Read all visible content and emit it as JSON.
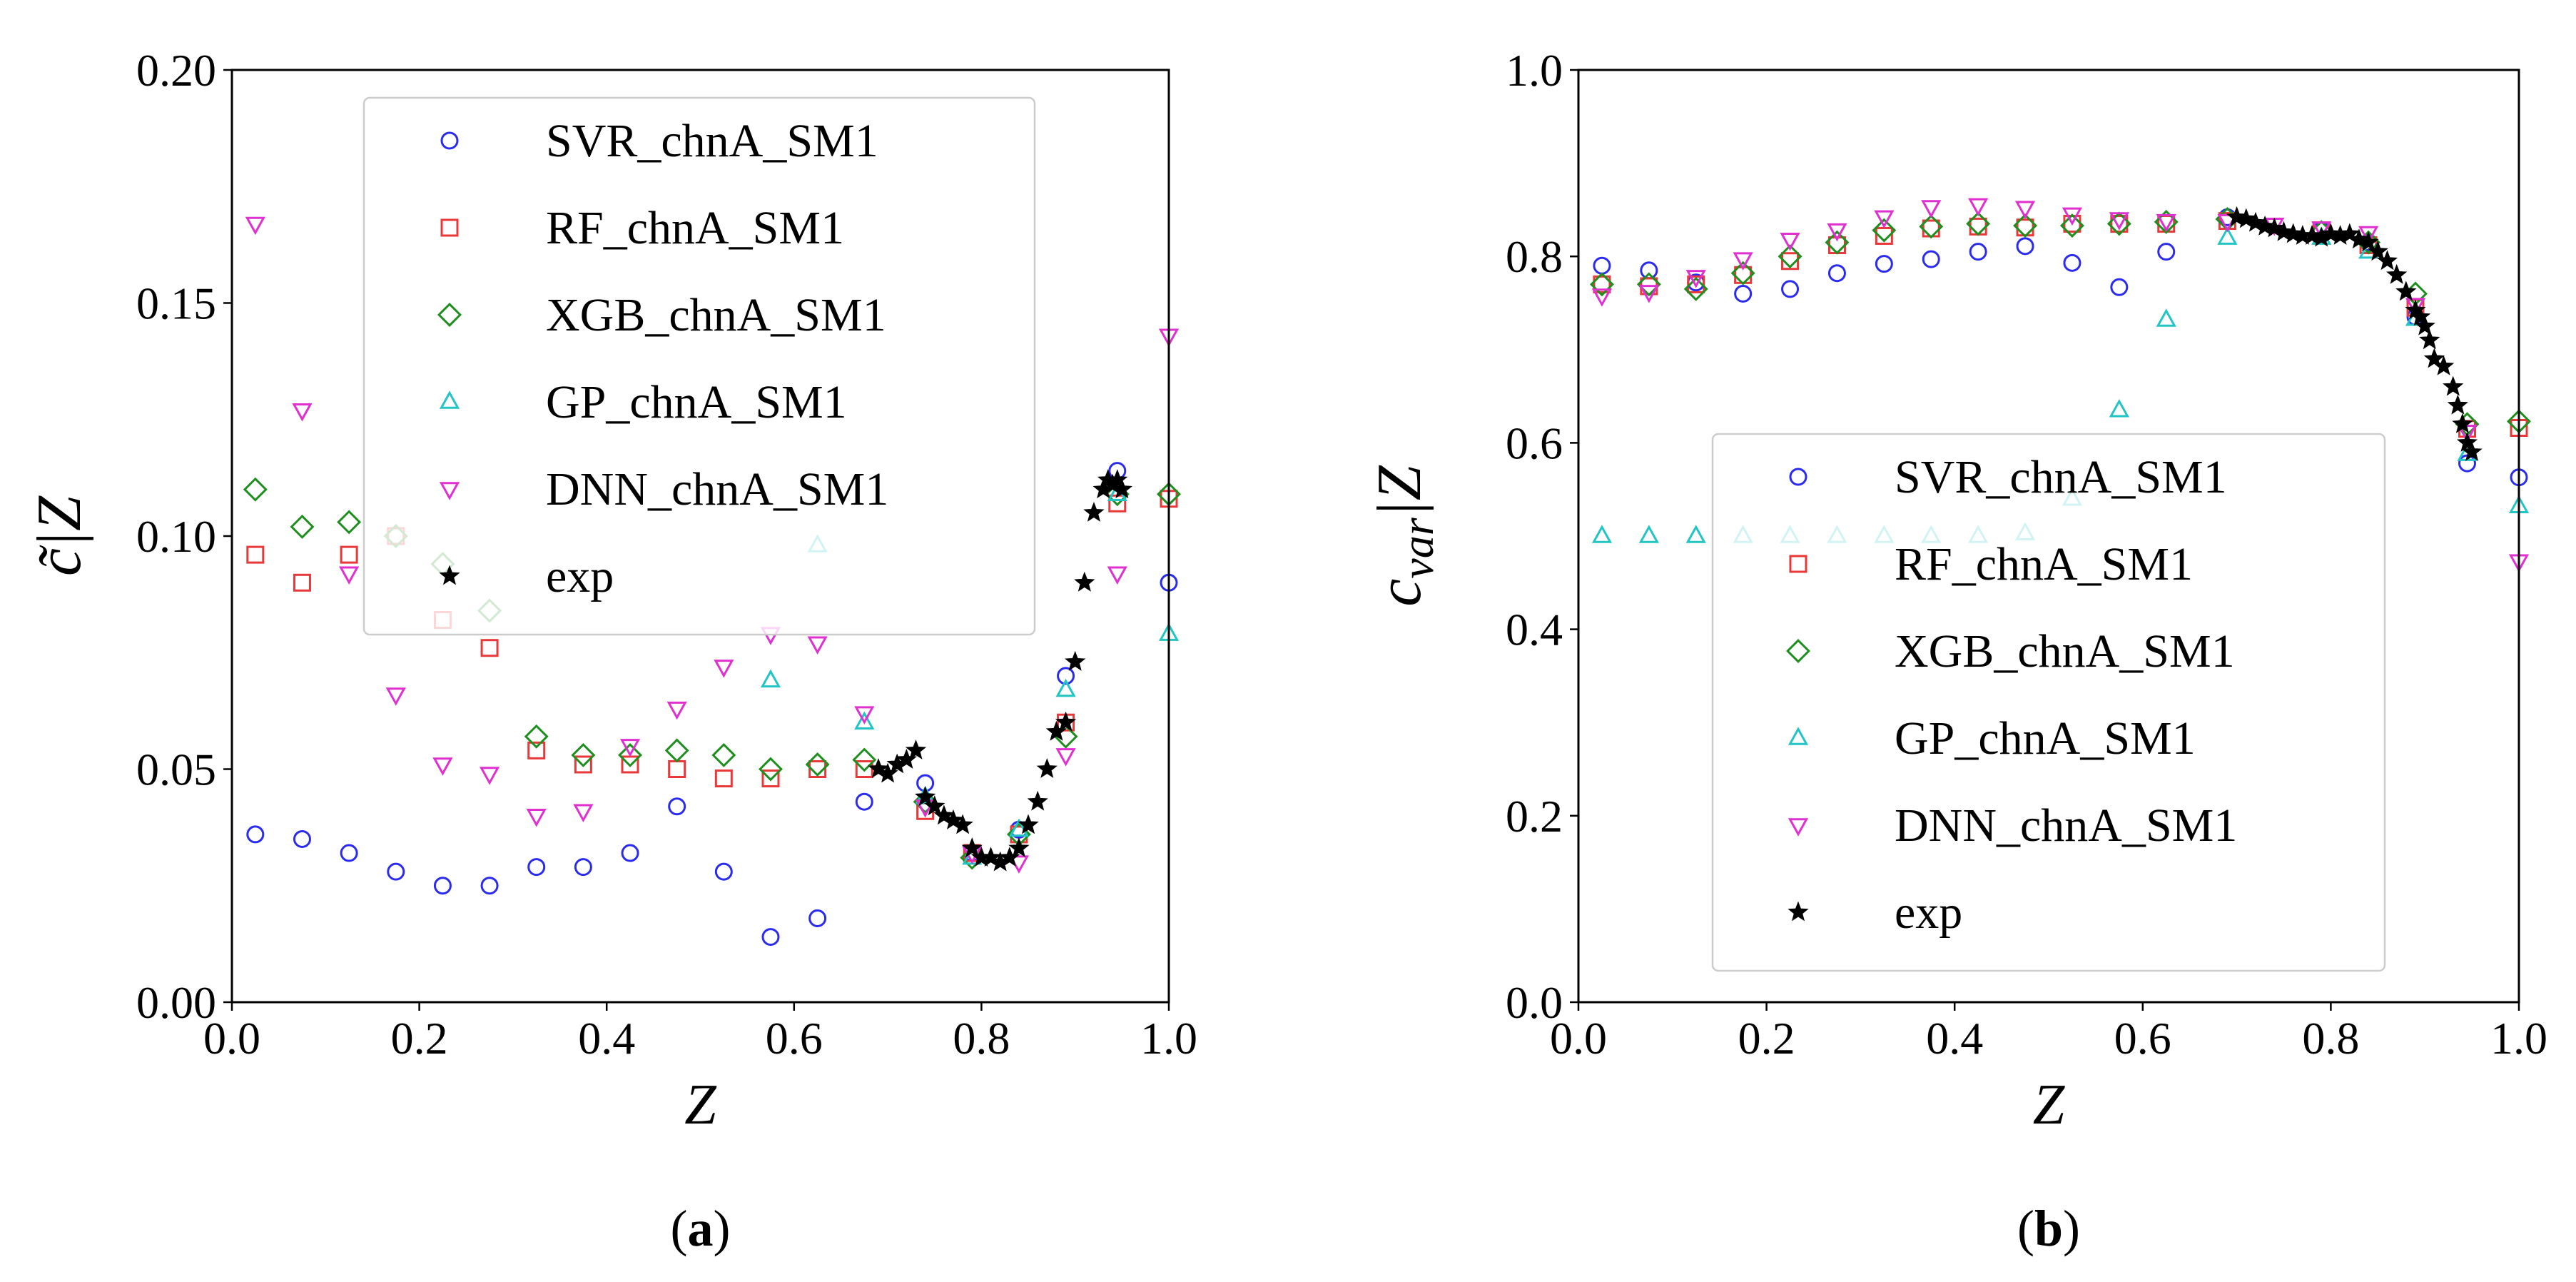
{
  "chart_data": [
    {
      "type": "scatter",
      "panel_label": "(a)",
      "xlabel": "Z",
      "ylabel": "c̃|Z",
      "xlim": [
        0.0,
        1.0
      ],
      "ylim": [
        0.0,
        0.2
      ],
      "xticks": [
        "0.0",
        "0.2",
        "0.4",
        "0.6",
        "0.8",
        "1.0"
      ],
      "yticks": [
        "0.00",
        "0.05",
        "0.10",
        "0.15",
        "0.20"
      ],
      "legend_position": "upper-center",
      "series": [
        {
          "name": "SVR_chnA_SM1",
          "marker": "circle",
          "color": "#2b2bf0",
          "x": [
            0.025,
            0.075,
            0.125,
            0.175,
            0.225,
            0.275,
            0.325,
            0.375,
            0.425,
            0.475,
            0.525,
            0.575,
            0.625,
            0.675,
            0.74,
            0.79,
            0.84,
            0.89,
            0.945,
            1.0
          ],
          "y": [
            0.036,
            0.035,
            0.032,
            0.028,
            0.025,
            0.025,
            0.029,
            0.029,
            0.032,
            0.042,
            0.028,
            0.014,
            0.018,
            0.043,
            0.047,
            0.032,
            0.037,
            0.07,
            0.114,
            0.09
          ]
        },
        {
          "name": "RF_chnA_SM1",
          "marker": "square",
          "color": "#e8383a",
          "x": [
            0.025,
            0.075,
            0.125,
            0.175,
            0.225,
            0.275,
            0.325,
            0.375,
            0.425,
            0.475,
            0.525,
            0.575,
            0.625,
            0.675,
            0.74,
            0.79,
            0.84,
            0.89,
            0.945,
            1.0
          ],
          "y": [
            0.096,
            0.09,
            0.096,
            0.1,
            0.082,
            0.076,
            0.054,
            0.051,
            0.051,
            0.05,
            0.048,
            0.048,
            0.05,
            0.05,
            0.041,
            0.032,
            0.036,
            0.06,
            0.107,
            0.108
          ]
        },
        {
          "name": "XGB_chnA_SM1",
          "marker": "diamond",
          "color": "#1e8f1e",
          "x": [
            0.025,
            0.075,
            0.125,
            0.175,
            0.225,
            0.275,
            0.325,
            0.375,
            0.425,
            0.475,
            0.525,
            0.575,
            0.625,
            0.675,
            0.74,
            0.79,
            0.84,
            0.89,
            0.945,
            1.0
          ],
          "y": [
            0.11,
            0.102,
            0.103,
            0.1,
            0.094,
            0.084,
            0.057,
            0.053,
            0.053,
            0.054,
            0.053,
            0.05,
            0.051,
            0.052,
            0.043,
            0.031,
            0.036,
            0.057,
            0.109,
            0.109
          ]
        },
        {
          "name": "GP_chnA_SM1",
          "marker": "triangle-up",
          "color": "#22c4c4",
          "x": [
            0.575,
            0.625,
            0.675,
            0.74,
            0.79,
            0.84,
            0.89,
            0.945,
            1.0
          ],
          "y": [
            0.069,
            0.098,
            0.06,
            0.044,
            0.031,
            0.037,
            0.067,
            0.109,
            0.079
          ]
        },
        {
          "name": "DNN_chnA_SM1",
          "marker": "triangle-down",
          "color": "#e030d0",
          "x": [
            0.025,
            0.075,
            0.125,
            0.175,
            0.225,
            0.275,
            0.325,
            0.375,
            0.425,
            0.475,
            0.525,
            0.575,
            0.625,
            0.675,
            0.74,
            0.79,
            0.84,
            0.89,
            0.945,
            1.0
          ],
          "y": [
            0.167,
            0.127,
            0.092,
            0.066,
            0.051,
            0.049,
            0.04,
            0.041,
            0.055,
            0.063,
            0.072,
            0.079,
            0.077,
            0.062,
            0.042,
            0.032,
            0.03,
            0.053,
            0.092,
            0.143
          ]
        },
        {
          "name": "exp",
          "marker": "star",
          "color": "#000000",
          "x": [
            0.69,
            0.7,
            0.71,
            0.72,
            0.73,
            0.74,
            0.75,
            0.76,
            0.77,
            0.78,
            0.79,
            0.8,
            0.81,
            0.82,
            0.83,
            0.84,
            0.85,
            0.86,
            0.87,
            0.88,
            0.89,
            0.9,
            0.91,
            0.92,
            0.93,
            0.935,
            0.94,
            0.945,
            0.95
          ],
          "y": [
            0.05,
            0.049,
            0.051,
            0.052,
            0.054,
            0.044,
            0.042,
            0.04,
            0.039,
            0.038,
            0.033,
            0.031,
            0.031,
            0.03,
            0.031,
            0.033,
            0.038,
            0.043,
            0.05,
            0.058,
            0.06,
            0.073,
            0.09,
            0.105,
            0.11,
            0.112,
            0.111,
            0.112,
            0.11
          ]
        }
      ]
    },
    {
      "type": "scatter",
      "panel_label": "(b)",
      "xlabel": "Z",
      "ylabel": "c_var|Z",
      "ylabel_base": "c",
      "ylabel_sub": "var",
      "ylabel_tail": "|Z",
      "xlim": [
        0.0,
        1.0
      ],
      "ylim": [
        0.0,
        1.0
      ],
      "xticks": [
        "0.0",
        "0.2",
        "0.4",
        "0.6",
        "0.8",
        "1.0"
      ],
      "yticks": [
        "0.0",
        "0.2",
        "0.4",
        "0.6",
        "0.8",
        "1.0"
      ],
      "legend_position": "lower-center",
      "series": [
        {
          "name": "SVR_chnA_SM1",
          "marker": "circle",
          "color": "#2b2bf0",
          "x": [
            0.025,
            0.075,
            0.125,
            0.175,
            0.225,
            0.275,
            0.325,
            0.375,
            0.425,
            0.475,
            0.525,
            0.575,
            0.625,
            0.69,
            0.79,
            0.84,
            0.89,
            0.945,
            1.0
          ],
          "y": [
            0.79,
            0.785,
            0.772,
            0.76,
            0.765,
            0.782,
            0.792,
            0.797,
            0.805,
            0.811,
            0.793,
            0.767,
            0.805,
            0.842,
            0.828,
            0.815,
            0.735,
            0.578,
            0.563
          ]
        },
        {
          "name": "RF_chnA_SM1",
          "marker": "square",
          "color": "#e8383a",
          "x": [
            0.025,
            0.075,
            0.125,
            0.175,
            0.225,
            0.275,
            0.325,
            0.375,
            0.425,
            0.475,
            0.525,
            0.575,
            0.625,
            0.69,
            0.79,
            0.84,
            0.89,
            0.945,
            1.0
          ],
          "y": [
            0.77,
            0.768,
            0.77,
            0.78,
            0.795,
            0.812,
            0.822,
            0.83,
            0.832,
            0.831,
            0.835,
            0.835,
            0.835,
            0.838,
            0.828,
            0.812,
            0.745,
            0.615,
            0.616
          ]
        },
        {
          "name": "XGB_chnA_SM1",
          "marker": "diamond",
          "color": "#1e8f1e",
          "x": [
            0.025,
            0.075,
            0.125,
            0.175,
            0.225,
            0.275,
            0.325,
            0.375,
            0.425,
            0.475,
            0.525,
            0.575,
            0.625,
            0.69,
            0.79,
            0.84,
            0.89,
            0.945,
            1.0
          ],
          "y": [
            0.77,
            0.77,
            0.765,
            0.782,
            0.8,
            0.815,
            0.828,
            0.832,
            0.835,
            0.833,
            0.833,
            0.835,
            0.837,
            0.84,
            0.826,
            0.815,
            0.76,
            0.62,
            0.623
          ]
        },
        {
          "name": "GP_chnA_SM1",
          "marker": "triangle-up",
          "color": "#22c4c4",
          "x": [
            0.025,
            0.075,
            0.125,
            0.175,
            0.225,
            0.275,
            0.325,
            0.375,
            0.425,
            0.475,
            0.525,
            0.575,
            0.625,
            0.69,
            0.79,
            0.84,
            0.89,
            0.945,
            1.0
          ],
          "y": [
            0.5,
            0.5,
            0.5,
            0.5,
            0.5,
            0.5,
            0.5,
            0.5,
            0.5,
            0.503,
            0.54,
            0.635,
            0.732,
            0.82,
            0.82,
            0.805,
            0.733,
            0.588,
            0.532
          ]
        },
        {
          "name": "DNN_chnA_SM1",
          "marker": "triangle-down",
          "color": "#e030d0",
          "x": [
            0.025,
            0.075,
            0.125,
            0.175,
            0.225,
            0.275,
            0.325,
            0.375,
            0.425,
            0.475,
            0.525,
            0.575,
            0.625,
            0.69,
            0.74,
            0.79,
            0.84,
            0.89,
            0.945,
            1.0
          ],
          "y": [
            0.758,
            0.762,
            0.778,
            0.797,
            0.818,
            0.828,
            0.842,
            0.853,
            0.855,
            0.852,
            0.845,
            0.84,
            0.838,
            0.838,
            0.834,
            0.83,
            0.825,
            0.748,
            0.612,
            0.473
          ]
        },
        {
          "name": "exp",
          "marker": "star",
          "color": "#000000",
          "x": [
            0.7,
            0.71,
            0.72,
            0.73,
            0.74,
            0.75,
            0.76,
            0.77,
            0.78,
            0.79,
            0.8,
            0.81,
            0.82,
            0.83,
            0.84,
            0.85,
            0.86,
            0.87,
            0.88,
            0.89,
            0.895,
            0.9,
            0.905,
            0.91,
            0.92,
            0.93,
            0.935,
            0.94,
            0.945,
            0.95
          ],
          "y": [
            0.842,
            0.84,
            0.836,
            0.832,
            0.83,
            0.826,
            0.824,
            0.822,
            0.822,
            0.82,
            0.824,
            0.822,
            0.824,
            0.818,
            0.815,
            0.805,
            0.795,
            0.78,
            0.762,
            0.742,
            0.735,
            0.725,
            0.71,
            0.69,
            0.682,
            0.66,
            0.64,
            0.62,
            0.6,
            0.59
          ]
        }
      ]
    }
  ]
}
